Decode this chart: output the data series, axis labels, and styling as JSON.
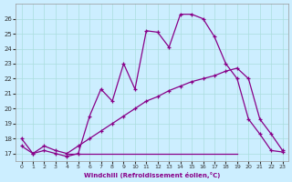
{
  "xlabel": "Windchill (Refroidissement éolien,°C)",
  "bg_color": "#cceeff",
  "grid_color": "#aadddd",
  "line_color": "#880088",
  "xlim": [
    -0.5,
    23.5
  ],
  "ylim": [
    16.5,
    27.0
  ],
  "xticks": [
    0,
    1,
    2,
    3,
    4,
    5,
    6,
    7,
    8,
    9,
    10,
    11,
    12,
    13,
    14,
    15,
    16,
    17,
    18,
    19,
    20,
    21,
    22,
    23
  ],
  "yticks": [
    17,
    18,
    19,
    20,
    21,
    22,
    23,
    24,
    25,
    26
  ],
  "series1_x": [
    0,
    1,
    2,
    3,
    4,
    5,
    6,
    7,
    8,
    9,
    10,
    11,
    12,
    13,
    14,
    15,
    16,
    17,
    18,
    19,
    20,
    21,
    22,
    23
  ],
  "series1_y": [
    18.0,
    17.0,
    17.2,
    17.0,
    16.8,
    17.0,
    19.5,
    21.3,
    20.5,
    23.0,
    21.3,
    25.2,
    25.1,
    24.1,
    26.3,
    26.3,
    26.0,
    24.8,
    23.0,
    22.0,
    19.3,
    18.3,
    17.2,
    17.1
  ],
  "series2_x": [
    0,
    1,
    2,
    3,
    4,
    5,
    6,
    7,
    8,
    9,
    10,
    11,
    12,
    13,
    14,
    15,
    16,
    17,
    18,
    19,
    20,
    21,
    22,
    23
  ],
  "series2_y": [
    17.5,
    17.0,
    17.5,
    17.2,
    17.0,
    17.5,
    18.0,
    18.5,
    19.0,
    19.5,
    20.0,
    20.5,
    20.8,
    21.2,
    21.5,
    21.8,
    22.0,
    22.2,
    22.5,
    22.7,
    22.0,
    19.3,
    18.3,
    17.2
  ],
  "series3_x": [
    4,
    19
  ],
  "series3_y": [
    17.0,
    17.0
  ]
}
